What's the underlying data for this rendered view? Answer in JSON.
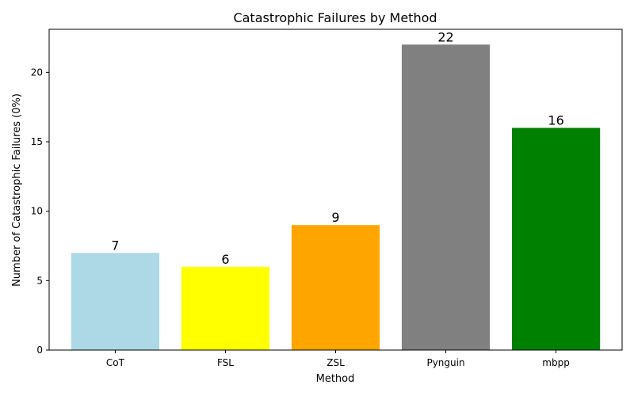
{
  "chart_data": {
    "type": "bar",
    "title": "Catastrophic Failures by Method",
    "xlabel": "Method",
    "ylabel": "Number of Catastrophic Failures (0%)",
    "categories": [
      "CoT",
      "FSL",
      "ZSL",
      "Pynguin",
      "mbpp"
    ],
    "values": [
      7,
      6,
      9,
      22,
      16
    ],
    "colors": [
      "#add8e6",
      "#ffff00",
      "#ffa500",
      "#808080",
      "#008000"
    ],
    "ylim": [
      0,
      23.1
    ],
    "yticks": [
      0,
      5,
      10,
      15,
      20
    ],
    "grid": false,
    "legend": "none"
  }
}
